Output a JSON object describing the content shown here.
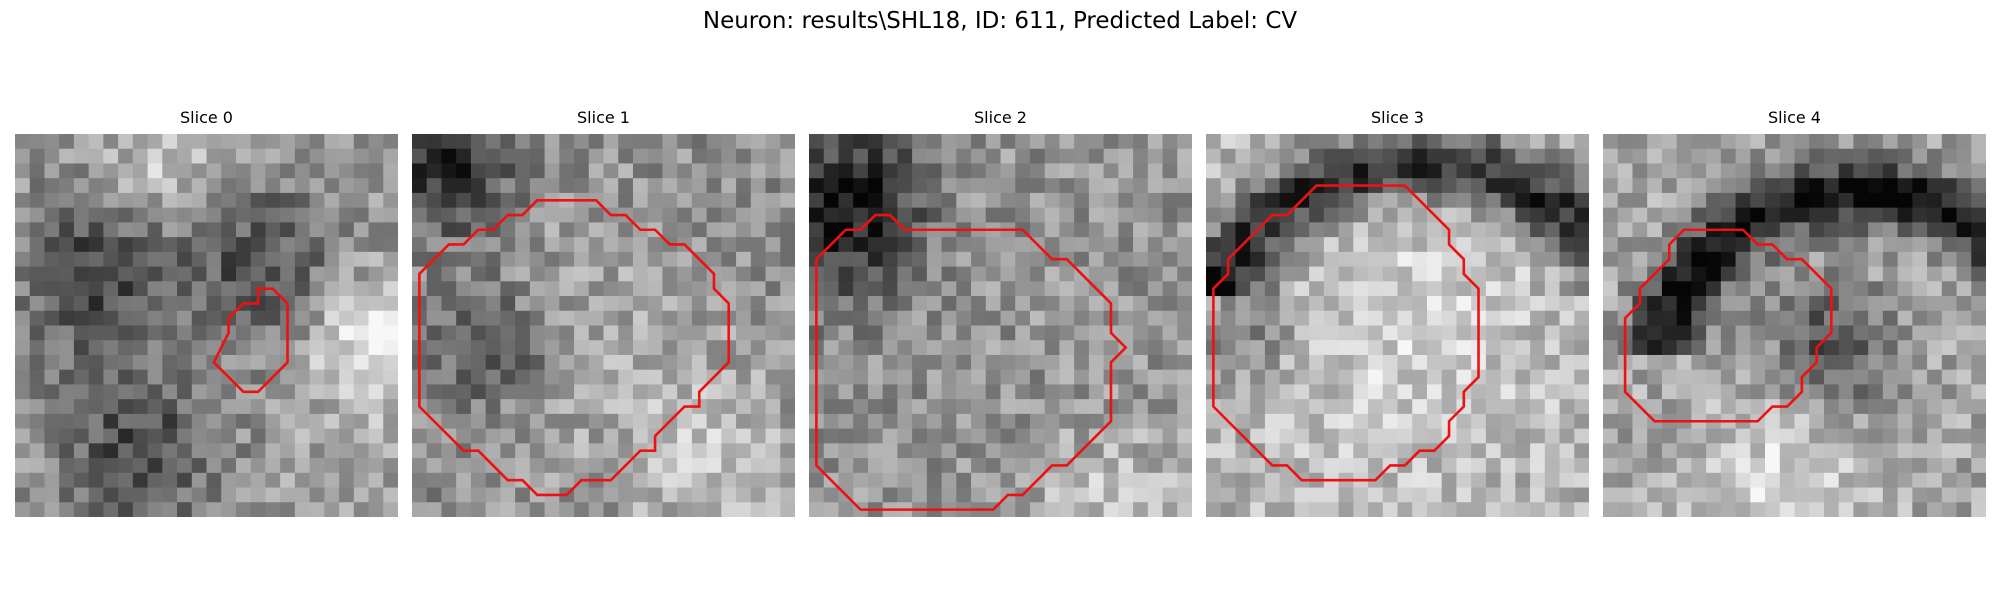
{
  "figure": {
    "suptitle": "Neuron: results\\SHL18, ID: 611, Predicted Label: CV",
    "contour_color": "#ee1111",
    "colormap": "gray",
    "panels": [
      {
        "title": "Slice 0",
        "contour": [
          [
            16,
            10
          ],
          [
            17,
            10
          ],
          [
            18,
            11
          ],
          [
            18,
            15
          ],
          [
            16,
            17
          ],
          [
            15,
            17
          ],
          [
            14,
            16
          ],
          [
            13,
            15
          ],
          [
            13.5,
            14
          ],
          [
            14,
            13
          ],
          [
            14,
            12
          ],
          [
            15,
            11
          ],
          [
            16,
            11
          ]
        ]
      },
      {
        "title": "Slice 1",
        "contour": [
          [
            10,
            4
          ],
          [
            12,
            4
          ],
          [
            13,
            5
          ],
          [
            14,
            5
          ],
          [
            15,
            6
          ],
          [
            16,
            6
          ],
          [
            17,
            7
          ],
          [
            18,
            7
          ],
          [
            19,
            8
          ],
          [
            20,
            9
          ],
          [
            20,
            10
          ],
          [
            21,
            11
          ],
          [
            21,
            15
          ],
          [
            20,
            16
          ],
          [
            19,
            17
          ],
          [
            19,
            18
          ],
          [
            18,
            18
          ],
          [
            17,
            19
          ],
          [
            16,
            20
          ],
          [
            16,
            21
          ],
          [
            15,
            21
          ],
          [
            14,
            22
          ],
          [
            13,
            23
          ],
          [
            11,
            23
          ],
          [
            10,
            24
          ],
          [
            8,
            24
          ],
          [
            7,
            23
          ],
          [
            6,
            23
          ],
          [
            5,
            22
          ],
          [
            4,
            21
          ],
          [
            3,
            21
          ],
          [
            2,
            20
          ],
          [
            1,
            19
          ],
          [
            0,
            18
          ],
          [
            0,
            13
          ],
          [
            0,
            9
          ],
          [
            1,
            8
          ],
          [
            2,
            7
          ],
          [
            3,
            7
          ],
          [
            4,
            6
          ],
          [
            5,
            6
          ],
          [
            6,
            5
          ],
          [
            7,
            5
          ],
          [
            8,
            4
          ],
          [
            9,
            4
          ]
        ]
      },
      {
        "title": "Slice 2",
        "contour": [
          [
            6,
            6
          ],
          [
            14,
            6
          ],
          [
            15,
            7
          ],
          [
            16,
            8
          ],
          [
            17,
            8
          ],
          [
            18,
            9
          ],
          [
            19,
            10
          ],
          [
            20,
            11
          ],
          [
            20,
            13
          ],
          [
            21,
            14
          ],
          [
            20,
            15
          ],
          [
            20,
            19
          ],
          [
            19,
            20
          ],
          [
            18,
            21
          ],
          [
            17,
            22
          ],
          [
            16,
            22
          ],
          [
            15,
            23
          ],
          [
            14,
            24
          ],
          [
            13,
            24
          ],
          [
            12,
            25
          ],
          [
            3,
            25
          ],
          [
            2,
            24
          ],
          [
            1,
            23
          ],
          [
            0,
            22
          ],
          [
            0,
            8
          ],
          [
            1,
            7
          ],
          [
            2,
            6
          ],
          [
            3,
            6
          ],
          [
            4,
            5
          ],
          [
            5,
            5
          ]
        ]
      },
      {
        "title": "Slice 3",
        "contour": [
          [
            7,
            3
          ],
          [
            13,
            3
          ],
          [
            14,
            4
          ],
          [
            15,
            5
          ],
          [
            16,
            6
          ],
          [
            16,
            7
          ],
          [
            17,
            8
          ],
          [
            17,
            9
          ],
          [
            18,
            10
          ],
          [
            18,
            16
          ],
          [
            17,
            17
          ],
          [
            17,
            18
          ],
          [
            16,
            19
          ],
          [
            16,
            20
          ],
          [
            15,
            21
          ],
          [
            14,
            21
          ],
          [
            13,
            22
          ],
          [
            12,
            22
          ],
          [
            11,
            23
          ],
          [
            6,
            23
          ],
          [
            5,
            22
          ],
          [
            4,
            22
          ],
          [
            3,
            21
          ],
          [
            2,
            20
          ],
          [
            1,
            19
          ],
          [
            0,
            18
          ],
          [
            0,
            17
          ],
          [
            0,
            13
          ],
          [
            0,
            10
          ],
          [
            1,
            9
          ],
          [
            1,
            8
          ],
          [
            2,
            7
          ],
          [
            3,
            6
          ],
          [
            4,
            5
          ],
          [
            5,
            5
          ],
          [
            6,
            4
          ]
        ]
      },
      {
        "title": "Slice 4",
        "contour": [
          [
            6,
            6
          ],
          [
            9,
            6
          ],
          [
            10,
            7
          ],
          [
            11,
            7
          ],
          [
            12,
            8
          ],
          [
            13,
            8
          ],
          [
            14,
            9
          ],
          [
            15,
            10
          ],
          [
            15,
            13
          ],
          [
            14,
            14
          ],
          [
            14,
            15
          ],
          [
            13,
            16
          ],
          [
            13,
            17
          ],
          [
            12,
            18
          ],
          [
            11,
            18
          ],
          [
            10,
            19
          ],
          [
            3,
            19
          ],
          [
            2,
            18
          ],
          [
            1,
            17
          ],
          [
            1,
            12
          ],
          [
            2,
            11
          ],
          [
            2,
            10
          ],
          [
            3,
            9
          ],
          [
            4,
            8
          ],
          [
            4,
            7
          ],
          [
            5,
            6
          ]
        ]
      }
    ]
  }
}
